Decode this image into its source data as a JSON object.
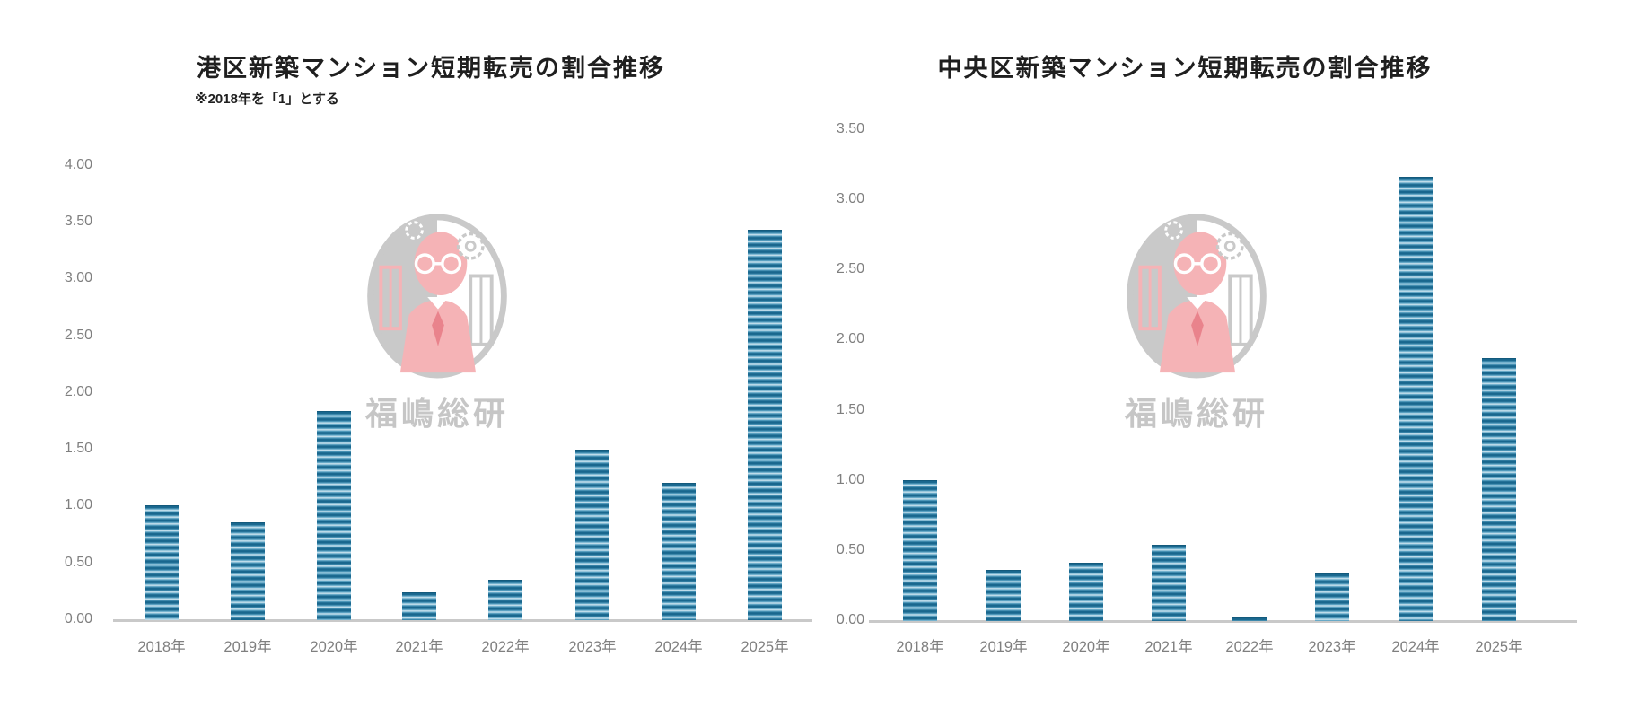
{
  "watermark": {
    "text": "福嶋総研"
  },
  "colors": {
    "bar_dark": "#19678e",
    "bar_mid": "#5ba3c4",
    "bar_light": "#d3e8f2",
    "axis_label_gray": "#7f7f7f",
    "axis_line_gray": "#c9c9c9",
    "title_color": "#1f1f1f",
    "watermark_gray": "#c6c6c6",
    "watermark_pink": "#f5b3b6"
  },
  "chart_data": [
    {
      "type": "bar",
      "title": "港区新築マンション短期転売の割合推移",
      "subtitle": "※2018年を「1」とする",
      "categories": [
        "2018年",
        "2019年",
        "2020年",
        "2021年",
        "2022年",
        "2023年",
        "2024年",
        "2025年"
      ],
      "values": [
        1.0,
        0.85,
        1.83,
        0.24,
        0.35,
        1.49,
        1.2,
        3.43
      ],
      "ylim": [
        0,
        4.0
      ],
      "ytick_step": 0.5,
      "ytick_labels": [
        "0.00",
        "0.50",
        "1.00",
        "1.50",
        "2.00",
        "2.50",
        "3.00",
        "3.50",
        "4.00"
      ],
      "grid": false,
      "legend": false
    },
    {
      "type": "bar",
      "title": "中央区新築マンション短期転売の割合推移",
      "subtitle": "",
      "categories": [
        "2018年",
        "2019年",
        "2020年",
        "2021年",
        "2022年",
        "2023年",
        "2024年",
        "2025年"
      ],
      "values": [
        1.0,
        0.36,
        0.41,
        0.54,
        0.02,
        0.33,
        3.16,
        1.87
      ],
      "ylim": [
        0,
        3.5
      ],
      "ytick_step": 0.5,
      "ytick_labels": [
        "0.00",
        "0.50",
        "1.00",
        "1.50",
        "2.00",
        "2.50",
        "3.00",
        "3.50"
      ],
      "grid": false,
      "legend": false
    }
  ]
}
